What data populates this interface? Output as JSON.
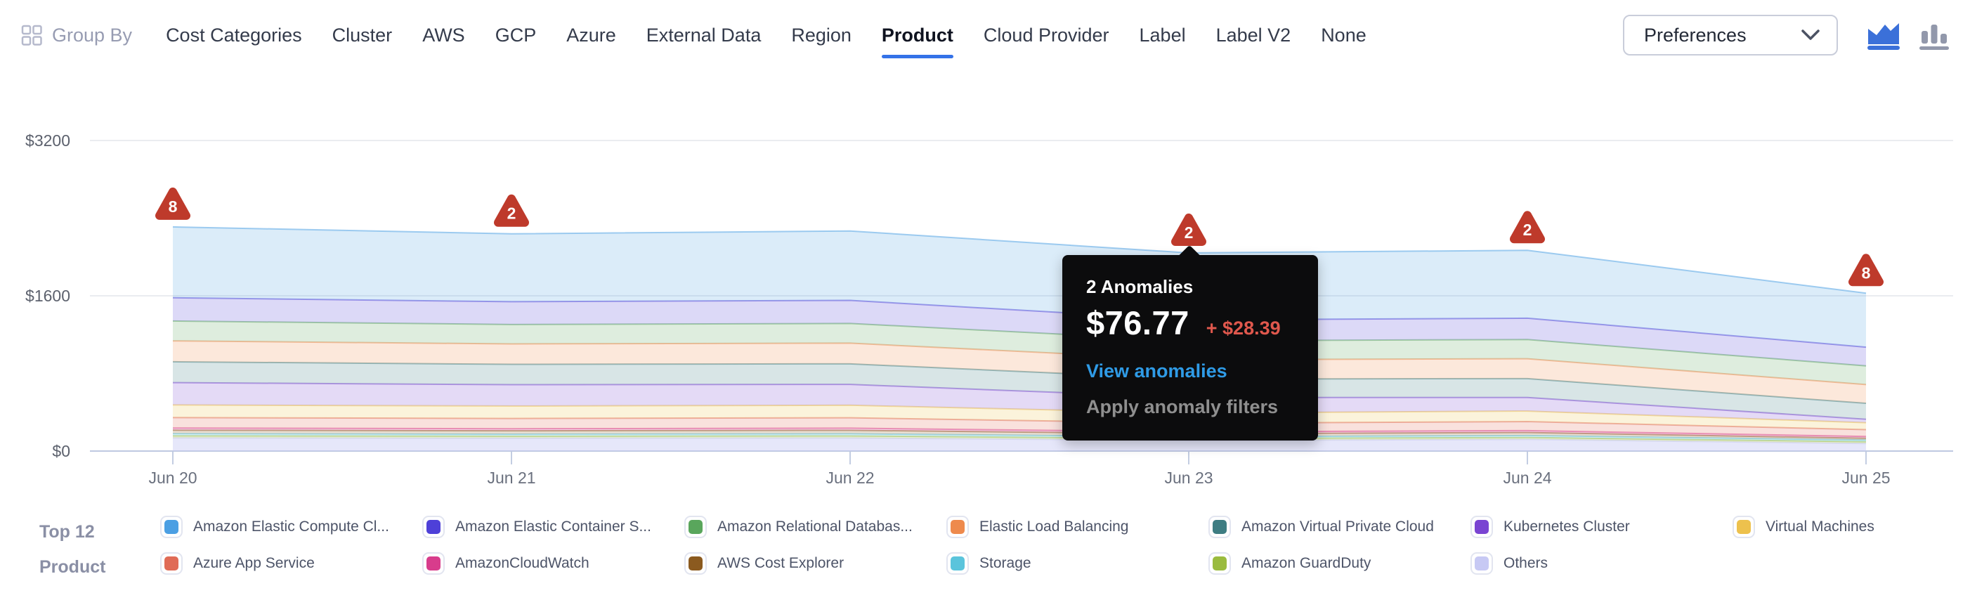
{
  "header": {
    "group_by_label": "Group By",
    "tabs": [
      {
        "label": "Cost Categories",
        "active": false
      },
      {
        "label": "Cluster",
        "active": false
      },
      {
        "label": "AWS",
        "active": false
      },
      {
        "label": "GCP",
        "active": false
      },
      {
        "label": "Azure",
        "active": false
      },
      {
        "label": "External Data",
        "active": false
      },
      {
        "label": "Region",
        "active": false
      },
      {
        "label": "Product",
        "active": true
      },
      {
        "label": "Cloud Provider",
        "active": false
      },
      {
        "label": "Label",
        "active": false
      },
      {
        "label": "Label V2",
        "active": false
      },
      {
        "label": "None",
        "active": false
      }
    ],
    "accent_color": "#3472E8",
    "preferences_label": "Preferences",
    "chart_type_toggle": {
      "area_chart_selected": true,
      "selected_color": "#3B70D9",
      "unselected_color": "#9298AB"
    }
  },
  "chart_data": {
    "type": "area",
    "stacked": true,
    "x": [
      "Jun 20",
      "Jun 21",
      "Jun 22",
      "Jun 23",
      "Jun 24",
      "Jun 25"
    ],
    "ylim": [
      0,
      3200
    ],
    "y_ticks": [
      {
        "label": "$0",
        "value": 0
      },
      {
        "label": "$1600",
        "value": 1600
      },
      {
        "label": "$3200",
        "value": 3200
      }
    ],
    "grid": true,
    "legend_position": "bottom",
    "units": "USD per day (estimated from pixels)",
    "series": [
      {
        "name": "Amazon Elastic Compute Cl...",
        "color": "#4B9FE3",
        "values": [
          730,
          700,
          715,
          690,
          700,
          556
        ]
      },
      {
        "name": "Amazon Elastic Container S...",
        "color": "#4E40D8",
        "values": [
          240,
          235,
          238,
          215,
          220,
          193
        ]
      },
      {
        "name": "Amazon Relational Databas...",
        "color": "#59A65C",
        "values": [
          205,
          200,
          203,
          195,
          198,
          193
        ]
      },
      {
        "name": "Elastic Load Balancing",
        "color": "#EE8A4D",
        "values": [
          215,
          210,
          213,
          200,
          204,
          193
        ]
      },
      {
        "name": "Amazon Virtual Private Cloud",
        "color": "#3E7D82",
        "values": [
          215,
          210,
          212,
          190,
          195,
          164
        ]
      },
      {
        "name": "Kubernetes Cluster",
        "color": "#7A44D2",
        "values": [
          230,
          220,
          215,
          160,
          140,
          36
        ]
      },
      {
        "name": "Virtual Machines",
        "color": "#EDC14D",
        "values": [
          130,
          128,
          129,
          105,
          108,
          71
        ]
      },
      {
        "name": "Azure App Service",
        "color": "#E06B56",
        "values": [
          108,
          106,
          107,
          90,
          93,
          71
        ]
      },
      {
        "name": "AmazonCloudWatch",
        "color": "#D83C8C",
        "values": [
          22,
          21,
          22,
          19,
          20,
          18
        ]
      },
      {
        "name": "AWS Cost Explorer",
        "color": "#8B5A1F",
        "values": [
          36,
          35,
          36,
          30,
          31,
          18
        ]
      },
      {
        "name": "Storage",
        "color": "#5AC4DC",
        "values": [
          22,
          21,
          22,
          19,
          20,
          18
        ]
      },
      {
        "name": "Amazon GuardDuty",
        "color": "#9ABB3E",
        "values": [
          22,
          21,
          22,
          19,
          20,
          18
        ]
      },
      {
        "name": "Others",
        "color": "#C7C9F4",
        "fill_opacity": 0.45,
        "values": [
          135,
          132,
          134,
          110,
          120,
          78
        ]
      }
    ],
    "anomalies": [
      {
        "x": "Jun 20",
        "count": 8
      },
      {
        "x": "Jun 21",
        "count": 2
      },
      {
        "x": "Jun 23",
        "count": 2
      },
      {
        "x": "Jun 24",
        "count": 2
      },
      {
        "x": "Jun 25",
        "count": 8
      }
    ],
    "marker_color": "#BE3A2B"
  },
  "tooltip": {
    "anchor_x": "Jun 23",
    "title": "2 Anomalies",
    "value": "$76.77",
    "delta": "+ $28.39",
    "delta_color": "#E0584D",
    "link": "View anomalies",
    "link_color": "#2F9BE6",
    "secondary": "Apply anomaly filters",
    "secondary_color": "#8F8F8F"
  },
  "legend": {
    "title_line1": "Top 12",
    "title_line2": "Product",
    "items": [
      {
        "label": "Amazon Elastic Compute Cl...",
        "color": "#4B9FE3"
      },
      {
        "label": "Azure App Service",
        "color": "#E06B56"
      },
      {
        "label": "Amazon Elastic Container S...",
        "color": "#4E40D8"
      },
      {
        "label": "AmazonCloudWatch",
        "color": "#D83C8C"
      },
      {
        "label": "Amazon Relational Databas...",
        "color": "#59A65C"
      },
      {
        "label": "AWS Cost Explorer",
        "color": "#8B5A1F"
      },
      {
        "label": "Elastic Load Balancing",
        "color": "#EE8A4D"
      },
      {
        "label": "Storage",
        "color": "#5AC4DC"
      },
      {
        "label": "Amazon Virtual Private Cloud",
        "color": "#3E7D82"
      },
      {
        "label": "Amazon GuardDuty",
        "color": "#9ABB3E"
      },
      {
        "label": "Kubernetes Cluster",
        "color": "#7A44D2"
      },
      {
        "label": "Others",
        "color": "#C7C9F4"
      },
      {
        "label": "Virtual Machines",
        "color": "#EDC14D"
      }
    ]
  }
}
